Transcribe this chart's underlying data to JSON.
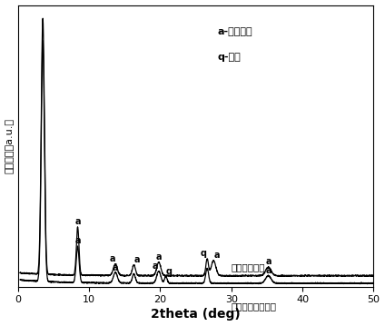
{
  "title": "",
  "xlabel": "2theta (deg)",
  "ylabel": "相对强度（a.u.）",
  "xlim": [
    0,
    50
  ],
  "background_color": "#ffffff",
  "annotation_line1": "a-凹凸棒石",
  "annotation_line2": "q-石英",
  "label_raw": "凹凸棒石黏土原矿",
  "label_nano": "纳米凹凸棒石",
  "raw_low_peak": 3.5,
  "nano_low_peak": 3.5
}
